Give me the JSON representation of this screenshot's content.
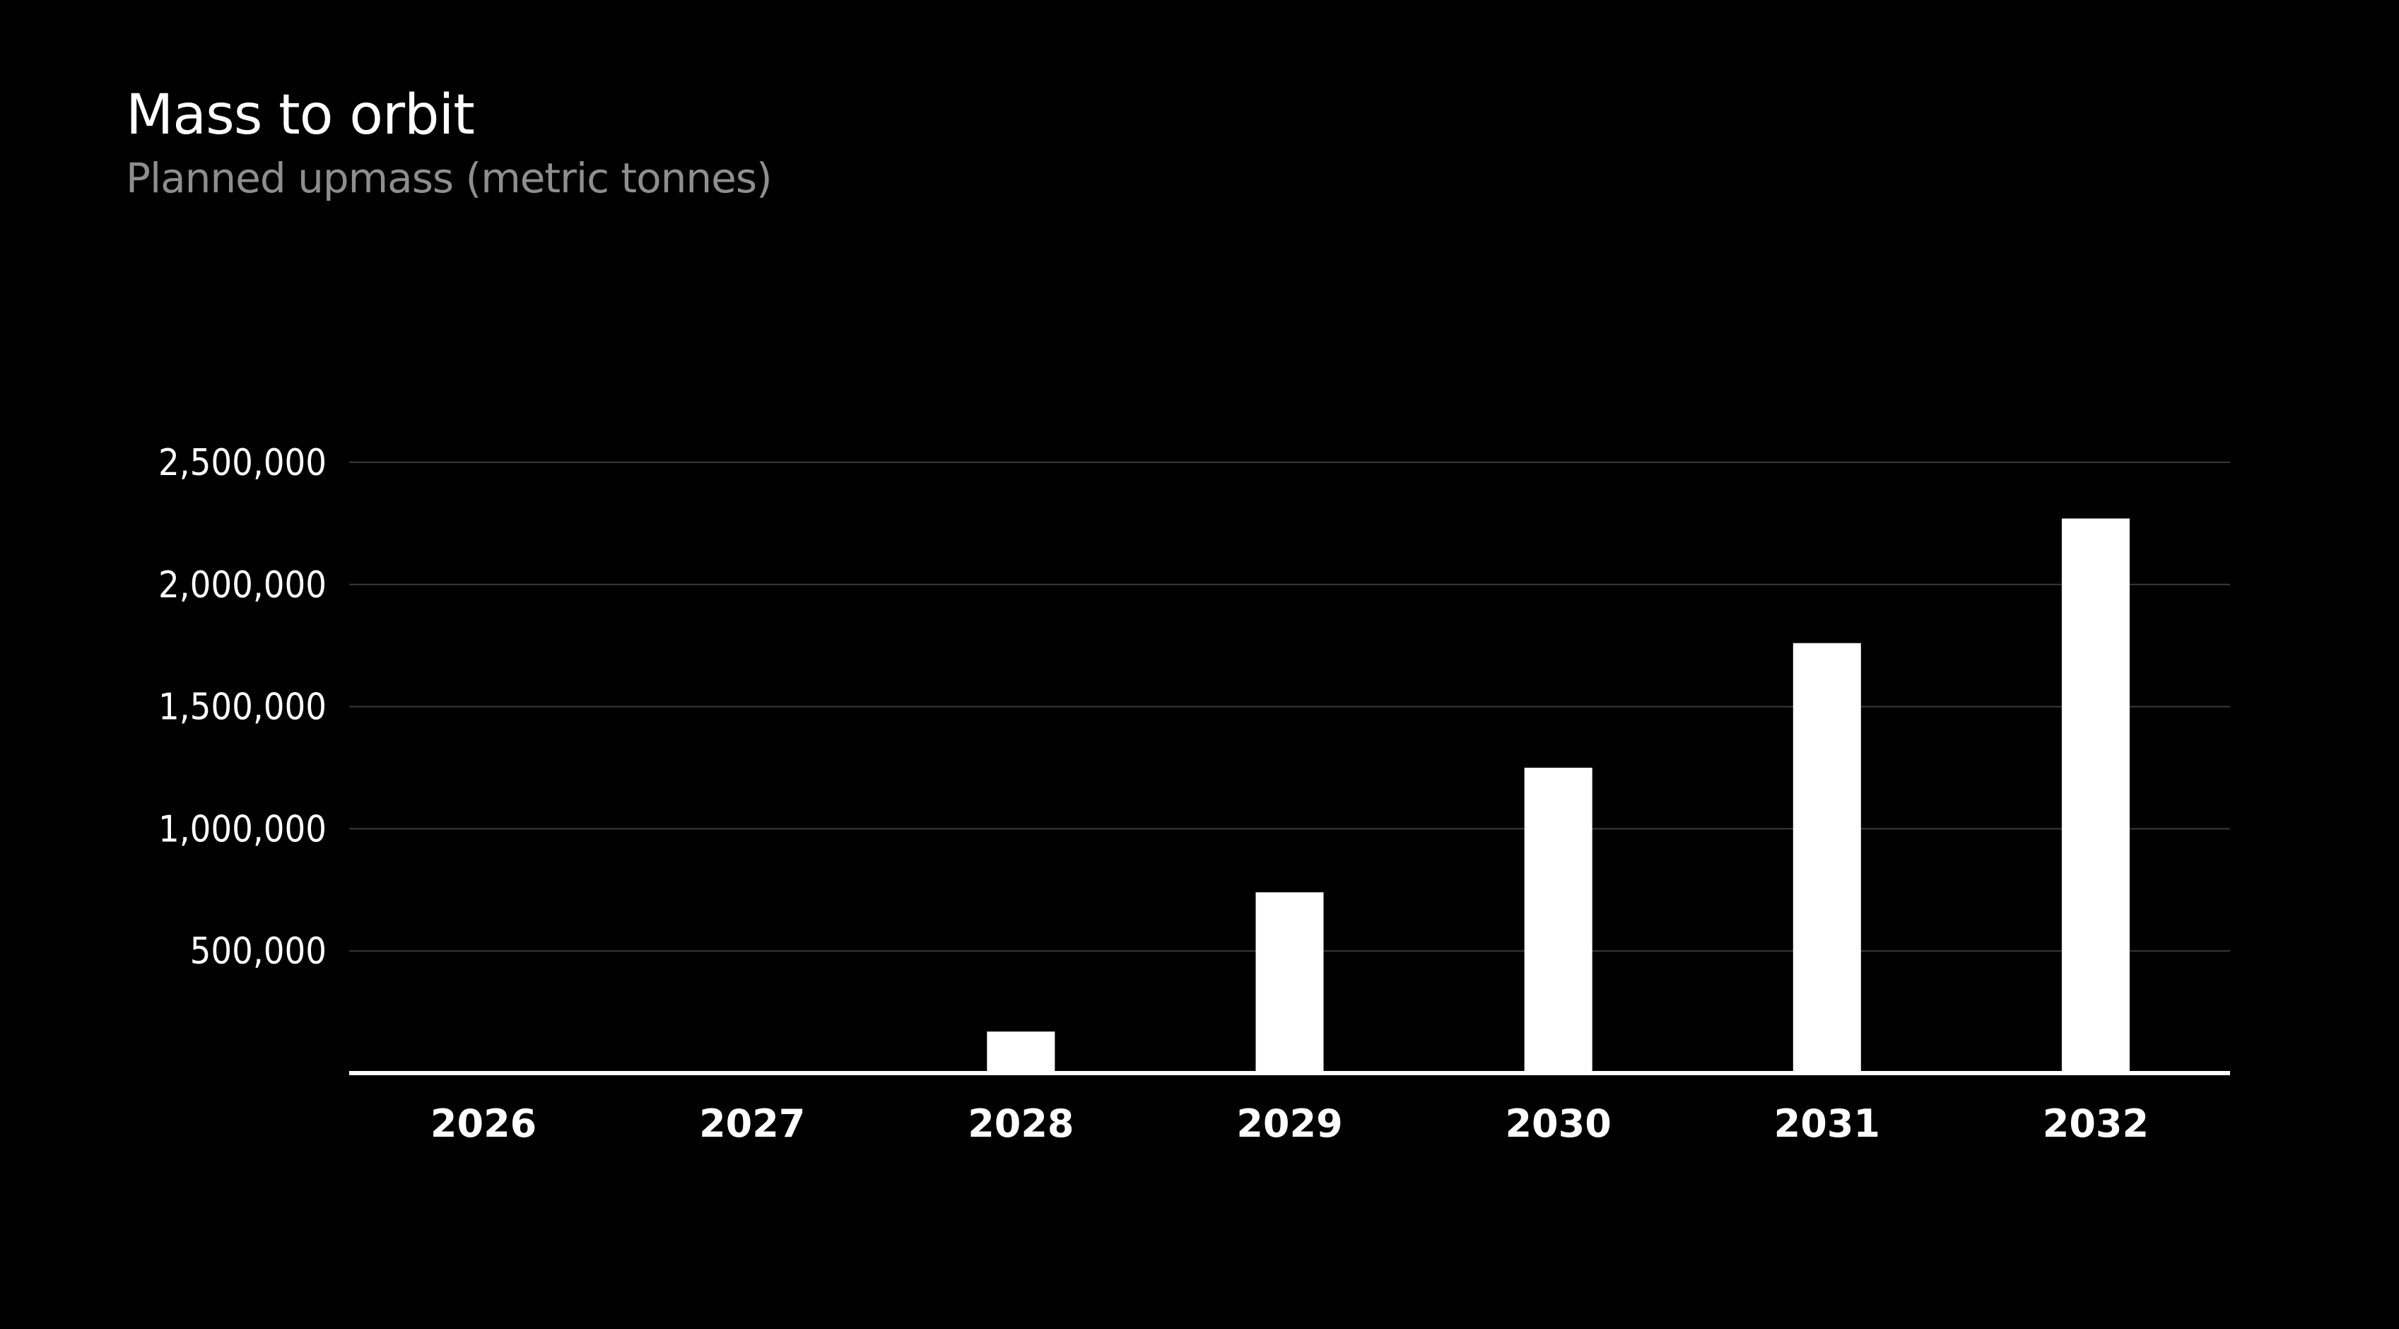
{
  "chart_data": {
    "type": "bar",
    "title": "Mass to orbit",
    "subtitle": "Planned upmass (metric tonnes)",
    "categories": [
      "2026",
      "2027",
      "2028",
      "2029",
      "2030",
      "2031",
      "2032"
    ],
    "values": [
      0,
      0,
      170000,
      740000,
      1250000,
      1760000,
      2270000
    ],
    "ylim": [
      0,
      2500000
    ],
    "yticks": [
      500000,
      1000000,
      1500000,
      2000000,
      2500000
    ],
    "ytick_labels": [
      "500,000",
      "1,000,000",
      "1,500,000",
      "2,000,000",
      "2,500,000"
    ],
    "xlabel": "",
    "ylabel": "",
    "grid": true,
    "bar_color": "#ffffff",
    "grid_color": "#3a3a3a",
    "background_color": "#000000"
  }
}
